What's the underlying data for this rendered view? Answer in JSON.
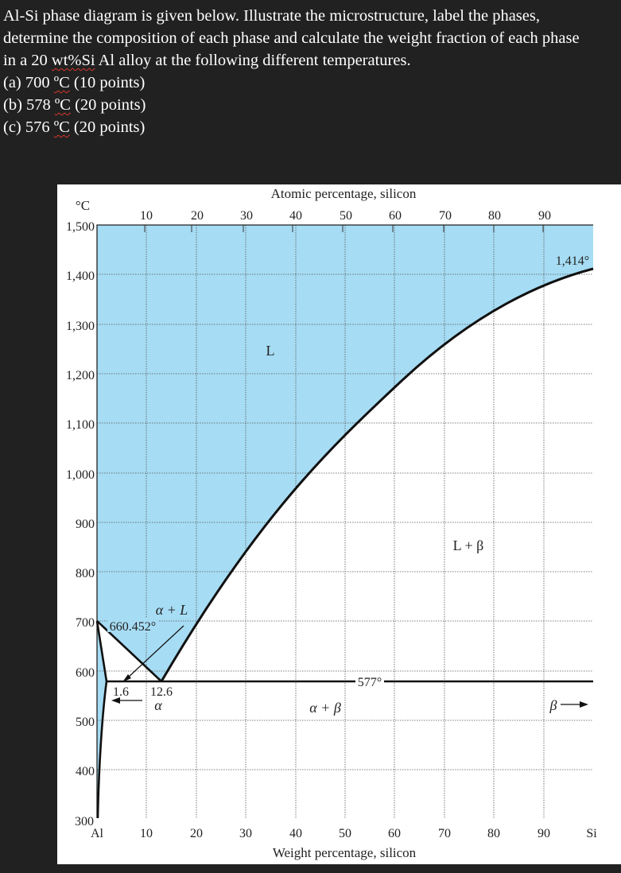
{
  "question": {
    "line1": "Al-Si phase diagram is given below. Illustrate the microstructure, label the phases,",
    "line2": "determine the composition of each phase and calculate the weight fraction of each phase",
    "line3_pre": "in a 20 ",
    "line3_mid": "wt%Si",
    "line3_post": " Al alloy at the following different temperatures.",
    "items": [
      {
        "pre": "(a) 700 ",
        "unit": "ºC",
        "post": " (10 points)"
      },
      {
        "pre": "(b) 578 ",
        "unit": "ºC",
        "post": " (20 points)"
      },
      {
        "pre": "(c) 576 ",
        "unit": "ºC",
        "post": " (20 points)"
      }
    ]
  },
  "diagram": {
    "y_unit": "°C",
    "top_axis_title": "Atomic percentage, silicon",
    "bottom_axis_title": "Weight percentage, silicon",
    "y_ticks": [
      "1,500",
      "1,400",
      "1,300",
      "1,200",
      "1,100",
      "1,000",
      "900",
      "800",
      "700",
      "600",
      "500",
      "400",
      "300"
    ],
    "top_ticks": [
      "10",
      "20",
      "30",
      "40",
      "50",
      "60",
      "70",
      "80",
      "90"
    ],
    "bottom_ticks": [
      "10",
      "20",
      "30",
      "40",
      "50",
      "60",
      "70",
      "80",
      "90"
    ],
    "left_element": "Al",
    "right_element": "Si",
    "phase_L": "L",
    "phase_alpha_L": "α + L",
    "phase_L_beta": "L + β",
    "phase_alpha_beta": "α + β",
    "phase_alpha": "α",
    "phase_beta": "β",
    "al_melting": "660.452°",
    "si_melting": "1,414°",
    "eutectic_temp": "577°",
    "alpha_solubility": "1.6",
    "eutectic_comp": "12.6",
    "colors": {
      "liquid_fill": "#a6dcf4",
      "line": "#111111",
      "grid": "#555555"
    }
  }
}
